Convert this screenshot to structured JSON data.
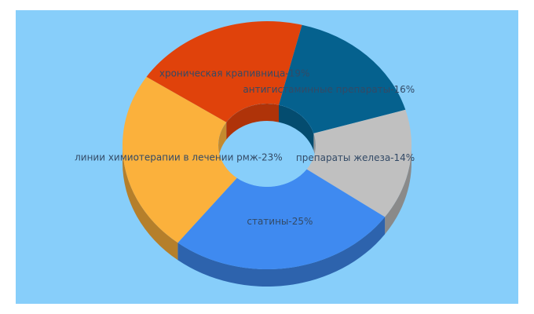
{
  "chart_data": {
    "type": "pie",
    "variant": "3d-donut",
    "background": "#87cefa",
    "slices": [
      {
        "label": "антигистаминные препараты",
        "value": 16,
        "display": "антигистаминные препараты-16%",
        "color": "#05618e"
      },
      {
        "label": "препараты железа",
        "value": 14,
        "display": "препараты железа-14%",
        "color": "#c0c0c0"
      },
      {
        "label": "статины",
        "value": 25,
        "display": "статины-25%",
        "color": "#3f8af0"
      },
      {
        "label": "линии химиотерапии в лечении рмж",
        "value": 23,
        "display": "линии химиотерапии в лечении рмж-23%",
        "color": "#fbb13c"
      },
      {
        "label": "хроническая крапивница",
        "value": 19,
        "display": "хроническая крапивница-19%",
        "color": "#e0420b"
      }
    ]
  }
}
